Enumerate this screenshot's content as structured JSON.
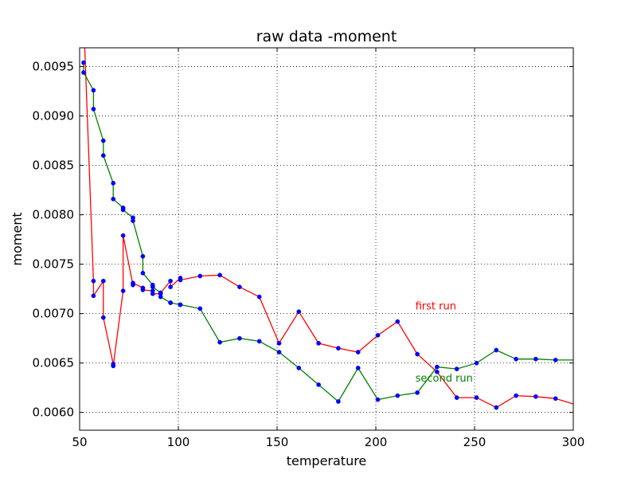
{
  "chart_data": {
    "type": "line",
    "title": "raw data -moment",
    "xlabel": "temperature",
    "ylabel": "moment",
    "xlim": [
      50,
      300
    ],
    "ylim": [
      0.00582,
      0.00969
    ],
    "xticks": [
      50,
      100,
      150,
      200,
      250,
      300
    ],
    "xtick_labels": [
      "50",
      "100",
      "150",
      "200",
      "250",
      "300"
    ],
    "yticks": [
      0.006,
      0.0065,
      0.007,
      0.0075,
      0.008,
      0.0085,
      0.009,
      0.0095
    ],
    "ytick_labels": [
      "0.0060",
      "0.0065",
      "0.0070",
      "0.0075",
      "0.0080",
      "0.0085",
      "0.0090",
      "0.0095"
    ],
    "grid": true,
    "marker_color": "#0000ff",
    "series": [
      {
        "name": "first run",
        "color": "#ff0000",
        "x": [
          52,
          57,
          57,
          62,
          62,
          67,
          67,
          72,
          72,
          77,
          77,
          82,
          82,
          87,
          87,
          91,
          91,
          96,
          96,
          101,
          101,
          111,
          121,
          131,
          141,
          151,
          161,
          171,
          181,
          191,
          201,
          211,
          221,
          231,
          241,
          251,
          261,
          271,
          281,
          291,
          301
        ],
        "y": [
          0.01,
          0.00733,
          0.00718,
          0.00733,
          0.00696,
          0.00649,
          0.00647,
          0.00723,
          0.00779,
          0.00729,
          0.00731,
          0.00726,
          0.00724,
          0.00723,
          0.0072,
          0.0072,
          0.00721,
          0.00733,
          0.00727,
          0.00736,
          0.00734,
          0.00738,
          0.00739,
          0.00727,
          0.00717,
          0.0067,
          0.00702,
          0.0067,
          0.00665,
          0.00661,
          0.00678,
          0.00692,
          0.00659,
          0.00641,
          0.00615,
          0.00615,
          0.00605,
          0.00617,
          0.00616,
          0.00614,
          0.00608
        ]
      },
      {
        "name": "second run",
        "color": "#008000",
        "x": [
          52,
          52,
          57,
          57,
          62,
          62,
          67,
          67,
          72,
          72,
          77,
          77,
          82,
          82,
          87,
          87,
          91,
          91,
          96,
          96,
          101,
          101,
          111,
          121,
          131,
          141,
          151,
          161,
          171,
          181,
          191,
          201,
          211,
          221,
          231,
          241,
          251,
          261,
          271,
          281,
          291,
          301
        ],
        "y": [
          0.00954,
          0.00944,
          0.00926,
          0.00907,
          0.00875,
          0.0086,
          0.00832,
          0.00816,
          0.00807,
          0.00805,
          0.00797,
          0.00794,
          0.00758,
          0.00741,
          0.00729,
          0.00727,
          0.00721,
          0.00717,
          0.00711,
          0.00711,
          0.00709,
          0.00709,
          0.00705,
          0.00671,
          0.00675,
          0.00672,
          0.00661,
          0.00645,
          0.00628,
          0.00611,
          0.00645,
          0.00613,
          0.00617,
          0.0062,
          0.00646,
          0.00644,
          0.0065,
          0.00663,
          0.00654,
          0.00654,
          0.00653,
          0.00653
        ]
      }
    ],
    "annotations": [
      {
        "text": "first run",
        "x": 220,
        "y": 0.00704,
        "color": "#ff0000"
      },
      {
        "text": "second run",
        "x": 220,
        "y": 0.00631,
        "color": "#008000"
      }
    ]
  }
}
